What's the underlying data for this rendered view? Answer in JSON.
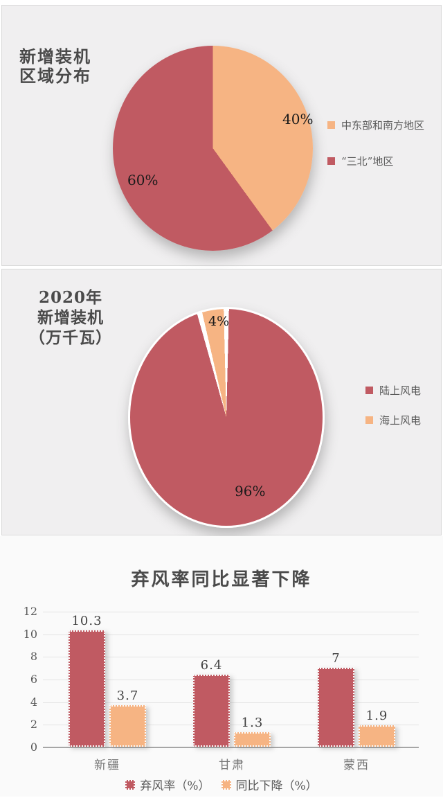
{
  "chart_data": [
    {
      "type": "pie",
      "title": "新增装机区域分布",
      "title_lines": [
        "新增装机",
        "区域分布"
      ],
      "labels": [
        "中东部和南方地区",
        "“三北”地区"
      ],
      "values": [
        40,
        60
      ],
      "unit": "%",
      "colors": [
        "#F6B483",
        "#C05A62"
      ],
      "data_labels": [
        "40%",
        "60%"
      ],
      "start_angle_deg": 0,
      "direction": "clockwise",
      "legend_position": "right"
    },
    {
      "type": "pie",
      "title": "2020年新增装机（万千瓦）",
      "title_lines": [
        "2020年",
        "新增装机",
        "（万千瓦）"
      ],
      "labels": [
        "陆上风电",
        "海上风电"
      ],
      "values": [
        96,
        4
      ],
      "unit": "%",
      "colors": [
        "#C05A62",
        "#F6B483"
      ],
      "data_labels": [
        "96%",
        "4%"
      ],
      "start_angle_deg": 0,
      "direction": "clockwise",
      "legend_position": "right",
      "slice_separator_color": "#FFFFFF"
    },
    {
      "type": "bar",
      "title": "弃风率同比显著下降",
      "categories": [
        "新疆",
        "甘肃",
        "蒙西"
      ],
      "series": [
        {
          "name": "弃风率（%）",
          "color": "#C05A62",
          "values": [
            10.3,
            6.4,
            7
          ]
        },
        {
          "name": "同比下降（%）",
          "color": "#F6B483",
          "values": [
            3.7,
            1.3,
            1.9
          ]
        }
      ],
      "ylim": [
        0,
        12
      ],
      "yticks": [
        0,
        2,
        4,
        6,
        8,
        10,
        12
      ],
      "grid": true,
      "legend_position": "bottom"
    }
  ],
  "colors": {
    "red": "#C05A62",
    "orange": "#F6B483",
    "panel_bg": "#F0EFF0",
    "panel_border": "#D8D8D8",
    "section_bg": "#FAFAFA",
    "title_text": "#4A4A4A",
    "axis_text": "#595959",
    "category_text": "#767676",
    "gridline": "#E3E3E3",
    "axis_line": "#A6A6A6",
    "pie_label_text": "#1A1A1A"
  }
}
